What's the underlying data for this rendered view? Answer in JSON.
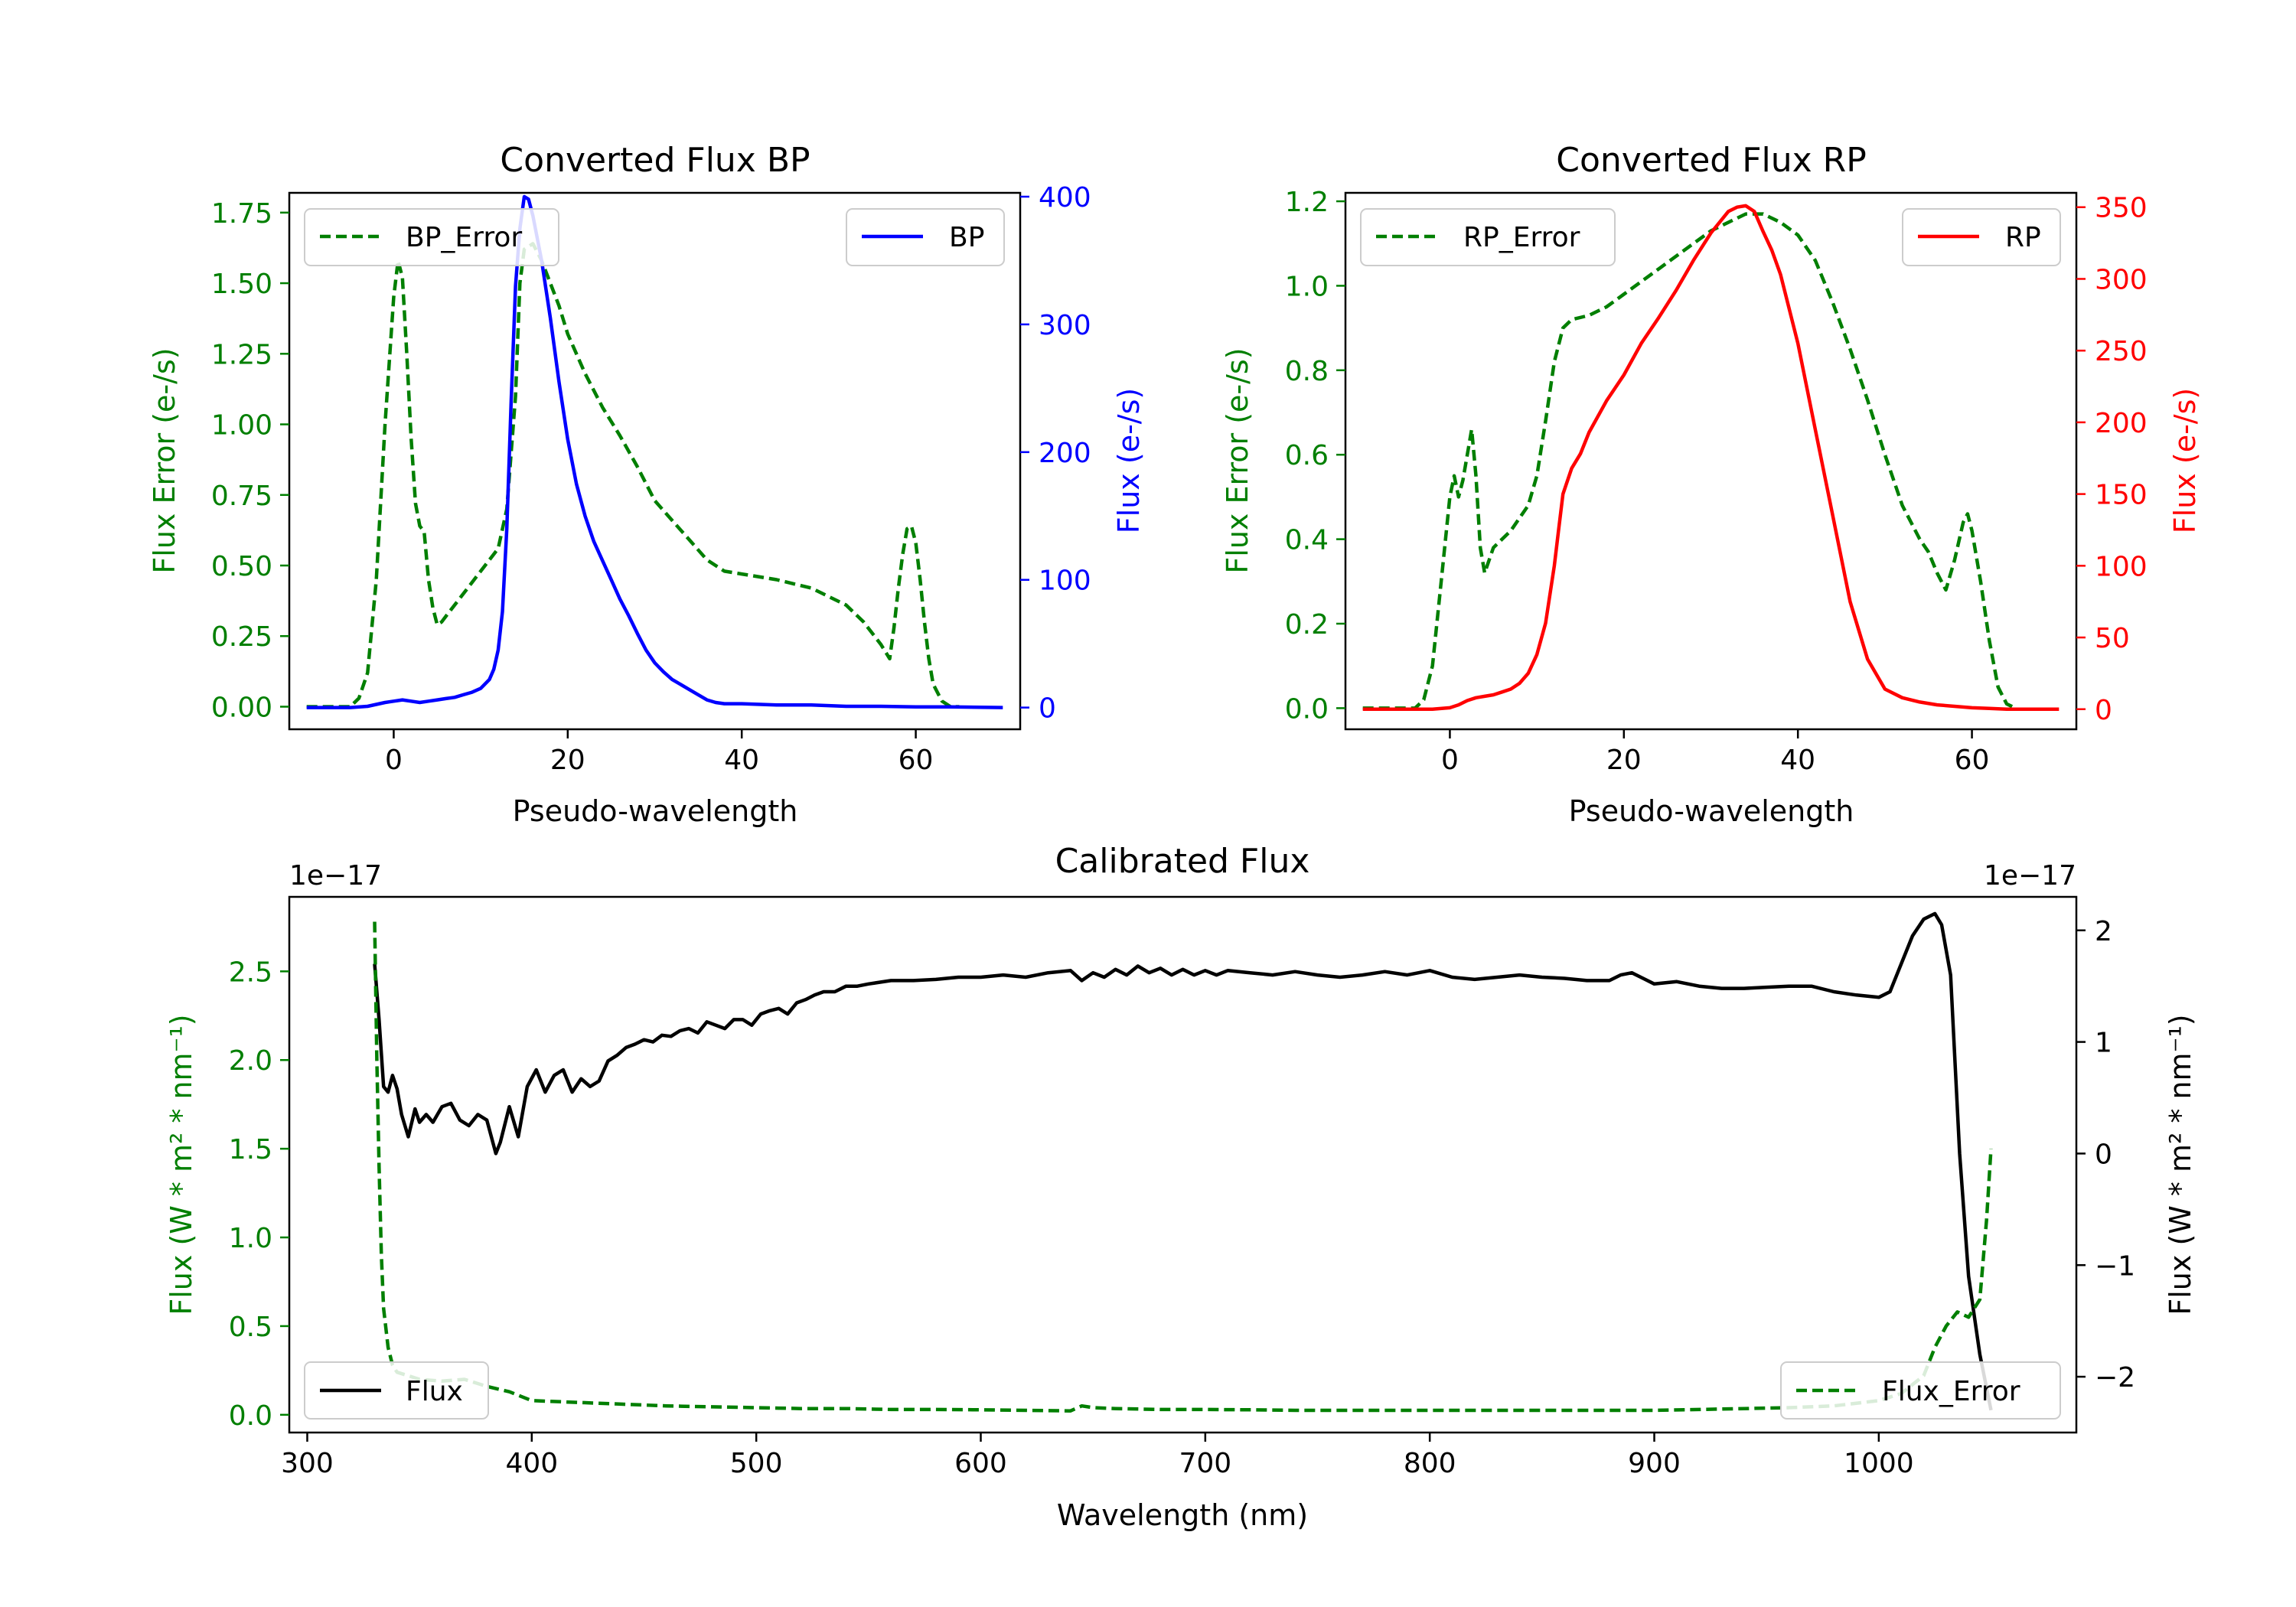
{
  "colors": {
    "error": "#007f00",
    "bp": "#0000ff",
    "rp": "#ff0000",
    "flux": "#000000",
    "axis": "#000000"
  },
  "chart_data": [
    {
      "type": "line",
      "title": "Converted Flux BP",
      "xlabel": "Pseudo-wavelength",
      "xlim": [
        -12,
        72
      ],
      "xticks": [
        0,
        20,
        40,
        60
      ],
      "left_axis": {
        "label": "Flux Error (e-/s)",
        "color": "#007f00",
        "ylim": [
          -0.08,
          1.82
        ],
        "ticks": [
          "0.00",
          "0.25",
          "0.50",
          "0.75",
          "1.00",
          "1.25",
          "1.50",
          "1.75"
        ],
        "tick_values": [
          0,
          0.25,
          0.5,
          0.75,
          1.0,
          1.25,
          1.5,
          1.75
        ]
      },
      "right_axis": {
        "label": "Flux (e-/s)",
        "color": "#0000ff",
        "ylim": [
          -17,
          403
        ],
        "ticks": [
          "0",
          "100",
          "200",
          "300",
          "400"
        ],
        "tick_values": [
          0,
          100,
          200,
          300,
          400
        ]
      },
      "series": [
        {
          "name": "BP_Error",
          "axis": "left",
          "style": "dashed",
          "color": "#007f00",
          "legend": "top-left",
          "x": [
            -10,
            -5,
            -4,
            -3,
            -2,
            -1,
            0,
            0.5,
            1,
            1.5,
            2,
            2.5,
            3,
            3.5,
            4,
            4.5,
            5,
            5.5,
            6,
            8,
            10,
            12,
            13,
            14,
            14.5,
            15,
            16,
            17,
            18,
            19,
            20,
            22,
            24,
            26,
            28,
            30,
            32,
            34,
            36,
            38,
            40,
            44,
            48,
            52,
            54,
            56,
            57,
            57.5,
            58,
            58.5,
            59,
            59.5,
            60,
            60.5,
            61,
            61.5,
            62,
            63,
            64,
            65
          ],
          "values": [
            0,
            0,
            0.03,
            0.12,
            0.45,
            1.0,
            1.45,
            1.58,
            1.52,
            1.25,
            0.95,
            0.72,
            0.64,
            0.62,
            0.45,
            0.35,
            0.29,
            0.3,
            0.32,
            0.4,
            0.48,
            0.56,
            0.7,
            1.1,
            1.5,
            1.62,
            1.64,
            1.58,
            1.5,
            1.42,
            1.32,
            1.18,
            1.06,
            0.96,
            0.85,
            0.73,
            0.66,
            0.59,
            0.52,
            0.48,
            0.47,
            0.45,
            0.42,
            0.36,
            0.3,
            0.22,
            0.17,
            0.28,
            0.42,
            0.54,
            0.63,
            0.64,
            0.58,
            0.45,
            0.3,
            0.17,
            0.08,
            0.02,
            0,
            0
          ]
        },
        {
          "name": "BP",
          "axis": "right",
          "style": "solid",
          "color": "#0000ff",
          "legend": "top-right",
          "x": [
            -10,
            -5,
            -3,
            -1,
            0,
            1,
            2,
            3,
            4,
            5,
            6,
            7,
            8,
            9,
            10,
            11,
            11.5,
            12,
            12.5,
            13,
            13.5,
            14,
            14.5,
            15,
            15.5,
            16,
            17,
            18,
            19,
            20,
            21,
            22,
            23,
            24,
            25,
            26,
            27,
            28,
            29,
            30,
            31,
            32,
            33,
            34,
            35,
            36,
            37,
            38,
            40,
            44,
            48,
            52,
            56,
            60,
            64,
            70
          ],
          "values": [
            0,
            0,
            1,
            4,
            5,
            6,
            5,
            4,
            5,
            6,
            7,
            8,
            10,
            12,
            15,
            22,
            30,
            45,
            75,
            140,
            240,
            330,
            375,
            400,
            398,
            385,
            350,
            305,
            255,
            210,
            175,
            150,
            130,
            115,
            100,
            85,
            72,
            58,
            45,
            35,
            28,
            22,
            18,
            14,
            10,
            6,
            4,
            3,
            3,
            2,
            2,
            1,
            1,
            0.5,
            0.5,
            0
          ]
        }
      ]
    },
    {
      "type": "line",
      "title": "Converted Flux RP",
      "xlabel": "Pseudo-wavelength",
      "xlim": [
        -12,
        72
      ],
      "xticks": [
        0,
        20,
        40,
        60
      ],
      "left_axis": {
        "label": "Flux Error (e-/s)",
        "color": "#007f00",
        "ylim": [
          -0.05,
          1.22
        ],
        "ticks": [
          "0.0",
          "0.2",
          "0.4",
          "0.6",
          "0.8",
          "1.0",
          "1.2"
        ],
        "tick_values": [
          0,
          0.2,
          0.4,
          0.6,
          0.8,
          1.0,
          1.2
        ]
      },
      "right_axis": {
        "label": "Flux (e-/s)",
        "color": "#ff0000",
        "ylim": [
          -14,
          360
        ],
        "ticks": [
          "0",
          "50",
          "100",
          "150",
          "200",
          "250",
          "300",
          "350"
        ],
        "tick_values": [
          0,
          50,
          100,
          150,
          200,
          250,
          300,
          350
        ]
      },
      "series": [
        {
          "name": "RP_Error",
          "axis": "left",
          "style": "dashed",
          "color": "#007f00",
          "legend": "top-left",
          "x": [
            -10,
            -4,
            -3,
            -2,
            -1,
            0,
            0.5,
            1,
            1.5,
            2,
            2.5,
            3,
            3.5,
            4,
            5,
            6,
            7,
            8,
            9,
            10,
            11,
            12,
            13,
            14,
            16,
            18,
            20,
            24,
            28,
            30,
            32,
            34,
            36,
            38,
            40,
            42,
            44,
            46,
            48,
            50,
            52,
            54,
            55,
            56,
            57,
            58,
            59,
            59.5,
            60,
            61,
            62,
            63,
            64,
            65
          ],
          "values": [
            0,
            0,
            0.02,
            0.1,
            0.3,
            0.5,
            0.55,
            0.5,
            0.54,
            0.6,
            0.66,
            0.55,
            0.38,
            0.32,
            0.38,
            0.4,
            0.42,
            0.45,
            0.48,
            0.55,
            0.68,
            0.82,
            0.9,
            0.92,
            0.93,
            0.95,
            0.98,
            1.04,
            1.1,
            1.13,
            1.15,
            1.17,
            1.17,
            1.15,
            1.12,
            1.06,
            0.96,
            0.85,
            0.73,
            0.6,
            0.48,
            0.4,
            0.37,
            0.32,
            0.28,
            0.35,
            0.44,
            0.46,
            0.42,
            0.3,
            0.16,
            0.05,
            0.01,
            0
          ]
        },
        {
          "name": "RP",
          "axis": "right",
          "style": "solid",
          "color": "#ff0000",
          "legend": "top-right",
          "x": [
            -10,
            -5,
            -2,
            0,
            1,
            2,
            3,
            4,
            5,
            6,
            7,
            8,
            9,
            10,
            11,
            12,
            12.5,
            13,
            14,
            15,
            16,
            18,
            20,
            22,
            24,
            26,
            28,
            30,
            32,
            33,
            34,
            35,
            36,
            37,
            38,
            40,
            42,
            44,
            46,
            48,
            50,
            52,
            54,
            56,
            58,
            60,
            62,
            64,
            70
          ],
          "values": [
            0,
            0,
            0,
            1,
            3,
            6,
            8,
            9,
            10,
            12,
            14,
            18,
            25,
            38,
            60,
            100,
            125,
            150,
            168,
            178,
            193,
            215,
            233,
            255,
            273,
            292,
            313,
            332,
            347,
            350,
            351,
            347,
            333,
            320,
            303,
            255,
            195,
            135,
            75,
            35,
            14,
            8,
            5,
            3,
            2,
            1,
            0.5,
            0,
            0
          ]
        }
      ]
    },
    {
      "type": "line",
      "title": "Calibrated Flux",
      "xlabel": "Wavelength (nm)",
      "xlim": [
        292,
        1088
      ],
      "xticks": [
        300,
        400,
        500,
        600,
        700,
        800,
        900,
        1000
      ],
      "left_axis": {
        "label": "Flux (W * m² * nm⁻¹)",
        "color": "#007f00",
        "offset": "1e−17",
        "ylim": [
          -0.1,
          2.92
        ],
        "ticks": [
          "0.0",
          "0.5",
          "1.0",
          "1.5",
          "2.0",
          "2.5"
        ],
        "tick_values": [
          0,
          0.5,
          1.0,
          1.5,
          2.0,
          2.5
        ]
      },
      "right_axis": {
        "label": "Flux (W * m² * nm⁻¹)",
        "color": "#000000",
        "offset": "1e−17",
        "ylim": [
          -2.5,
          2.3
        ],
        "ticks": [
          "−2",
          "−1",
          "0",
          "1",
          "2"
        ],
        "tick_values": [
          -2,
          -1,
          0,
          1,
          2
        ]
      },
      "series": [
        {
          "name": "Flux",
          "axis": "right",
          "style": "solid",
          "color": "#000000",
          "legend": "bottom-left",
          "x": [
            330,
            332,
            334,
            336,
            338,
            340,
            342,
            345,
            348,
            350,
            353,
            356,
            358,
            360,
            364,
            368,
            372,
            376,
            380,
            384,
            386,
            390,
            394,
            398,
            402,
            406,
            410,
            414,
            418,
            422,
            426,
            430,
            434,
            438,
            442,
            446,
            450,
            454,
            458,
            462,
            466,
            470,
            474,
            478,
            482,
            486,
            490,
            494,
            498,
            502,
            506,
            510,
            514,
            518,
            522,
            526,
            530,
            535,
            540,
            545,
            550,
            560,
            570,
            580,
            590,
            600,
            610,
            620,
            630,
            640,
            645,
            650,
            655,
            660,
            665,
            670,
            675,
            680,
            685,
            690,
            695,
            700,
            705,
            710,
            720,
            730,
            740,
            750,
            760,
            770,
            780,
            790,
            800,
            810,
            820,
            830,
            840,
            850,
            860,
            870,
            880,
            885,
            890,
            895,
            900,
            910,
            920,
            930,
            940,
            950,
            960,
            970,
            980,
            990,
            1000,
            1005,
            1010,
            1015,
            1020,
            1025,
            1028,
            1032,
            1036,
            1040,
            1045,
            1050
          ],
          "values": [
            1.7,
            1.2,
            0.6,
            0.55,
            0.7,
            0.58,
            0.35,
            0.15,
            0.4,
            0.28,
            0.35,
            0.28,
            0.35,
            0.42,
            0.45,
            0.3,
            0.25,
            0.35,
            0.3,
            0.0,
            0.1,
            0.42,
            0.15,
            0.6,
            0.75,
            0.55,
            0.7,
            0.75,
            0.55,
            0.67,
            0.6,
            0.65,
            0.83,
            0.88,
            0.95,
            0.98,
            1.02,
            1.0,
            1.06,
            1.05,
            1.1,
            1.12,
            1.08,
            1.18,
            1.15,
            1.12,
            1.2,
            1.2,
            1.15,
            1.25,
            1.28,
            1.3,
            1.25,
            1.35,
            1.38,
            1.42,
            1.45,
            1.45,
            1.5,
            1.5,
            1.52,
            1.55,
            1.55,
            1.56,
            1.58,
            1.58,
            1.6,
            1.58,
            1.62,
            1.64,
            1.55,
            1.62,
            1.58,
            1.65,
            1.6,
            1.68,
            1.62,
            1.66,
            1.6,
            1.65,
            1.6,
            1.64,
            1.6,
            1.64,
            1.62,
            1.6,
            1.63,
            1.6,
            1.58,
            1.6,
            1.63,
            1.6,
            1.64,
            1.58,
            1.56,
            1.58,
            1.6,
            1.58,
            1.57,
            1.55,
            1.55,
            1.6,
            1.62,
            1.57,
            1.52,
            1.54,
            1.5,
            1.48,
            1.48,
            1.49,
            1.5,
            1.5,
            1.45,
            1.42,
            1.4,
            1.45,
            1.7,
            1.95,
            2.1,
            2.15,
            2.05,
            1.6,
            0.0,
            -1.1,
            -1.8,
            -2.3
          ],
          "y_offset": "1e-17"
        },
        {
          "name": "Flux_Error",
          "axis": "left",
          "style": "dashed",
          "color": "#007f00",
          "legend": "bottom-right",
          "x": [
            330,
            331,
            332,
            333,
            334,
            336,
            338,
            340,
            345,
            350,
            360,
            370,
            380,
            390,
            400,
            420,
            440,
            460,
            480,
            500,
            520,
            540,
            560,
            580,
            600,
            620,
            640,
            645,
            650,
            660,
            680,
            700,
            720,
            740,
            760,
            780,
            800,
            820,
            840,
            860,
            880,
            900,
            920,
            940,
            960,
            980,
            1000,
            1010,
            1020,
            1025,
            1030,
            1035,
            1040,
            1045,
            1048,
            1050
          ],
          "values": [
            2.78,
            2.0,
            1.4,
            0.9,
            0.6,
            0.38,
            0.28,
            0.24,
            0.22,
            0.2,
            0.19,
            0.2,
            0.16,
            0.13,
            0.08,
            0.07,
            0.06,
            0.05,
            0.045,
            0.04,
            0.035,
            0.035,
            0.03,
            0.03,
            0.028,
            0.025,
            0.022,
            0.05,
            0.04,
            0.035,
            0.03,
            0.03,
            0.028,
            0.025,
            0.025,
            0.025,
            0.025,
            0.025,
            0.025,
            0.025,
            0.025,
            0.025,
            0.03,
            0.035,
            0.04,
            0.05,
            0.08,
            0.12,
            0.22,
            0.38,
            0.5,
            0.58,
            0.55,
            0.65,
            1.1,
            1.5
          ],
          "y_offset": "1e-17"
        }
      ]
    }
  ]
}
